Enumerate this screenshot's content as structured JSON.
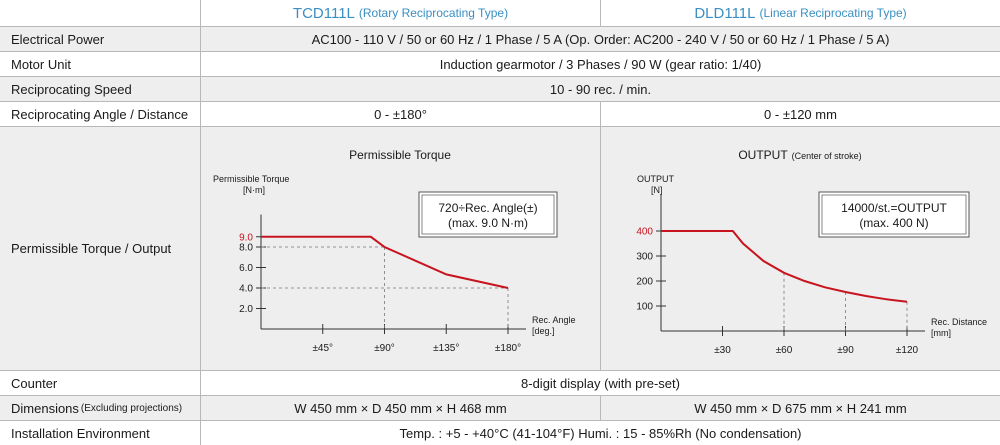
{
  "header": {
    "model_left": "TCD111L",
    "type_left": "(Rotary Reciprocating Type)",
    "model_right": "DLD111L",
    "type_right": "(Linear Reciprocating Type)"
  },
  "rows": {
    "power": {
      "label": "Electrical Power",
      "value": "AC100 - 110 V / 50 or 60 Hz / 1 Phase / 5 A   (Op. Order: AC200 - 240 V / 50 or 60 Hz / 1 Phase / 5 A)"
    },
    "motor": {
      "label": "Motor Unit",
      "value": "Induction gearmotor / 3 Phases / 90 W (gear ratio: 1/40)"
    },
    "speed": {
      "label": "Reciprocating Speed",
      "value": "10 - 90 rec. / min."
    },
    "angle": {
      "label": "Reciprocating Angle / Distance",
      "left": "0 - ±180°",
      "right": "0 - ±120 mm"
    },
    "torque": {
      "label": "Permissible Torque / Output"
    },
    "counter": {
      "label": "Counter",
      "value": "8-digit display (with pre-set)"
    },
    "dimensions": {
      "label": "Dimensions",
      "label_note": "(Excluding projections)",
      "left": "W 450 mm × D 450 mm × H 468 mm",
      "right": "W 450 mm × D 675 mm × H 241 mm"
    },
    "environment": {
      "label": "Installation Environment",
      "value": "Temp. : +5 - +40°C (41-104°F)   Humi. : 15 - 85%Rh (No condensation)"
    }
  },
  "colors": {
    "header_text": "#3a8fc4",
    "curve": "#c8141e",
    "row_shade": "#eeeeee"
  },
  "chart_data": [
    {
      "type": "line",
      "title": "Permissible Torque",
      "ylabel_line1": "Permissible Torque",
      "ylabel_line2": "[N·m]",
      "xlabel_line1": "Rec. Angle",
      "xlabel_line2": "[deg.]",
      "formula_line1": "720÷Rec. Angle(±)",
      "formula_line2": "(max. 9.0 N·m)",
      "x": [
        0,
        45,
        80,
        90,
        135,
        180
      ],
      "y": [
        9.0,
        9.0,
        9.0,
        8.0,
        5.33,
        4.0
      ],
      "x_ticks": [
        45,
        90,
        135,
        180
      ],
      "x_tick_labels": [
        "±45°",
        "±90°",
        "±135°",
        "±180°"
      ],
      "y_ticks": [
        2.0,
        4.0,
        6.0,
        8.0,
        9.0
      ],
      "y_tick_labels": [
        "2.0",
        "4.0",
        "6.0",
        "8.0",
        "9.0"
      ],
      "highlight_tick": "9.0",
      "xlim": [
        0,
        180
      ],
      "ylim": [
        0,
        10
      ],
      "guides": [
        {
          "x": 90,
          "y": 8.0
        },
        {
          "x": 180,
          "y": 4.0
        }
      ]
    },
    {
      "type": "line",
      "title": "OUTPUT",
      "subtitle": "(Center of stroke)",
      "ylabel_line1": "OUTPUT",
      "ylabel_line2": "[N]",
      "xlabel_line1": "Rec. Distance",
      "xlabel_line2": "[mm]",
      "formula_line1": "14000/st.=OUTPUT",
      "formula_line2": "(max. 400 N)",
      "x": [
        0,
        35,
        40,
        50,
        60,
        70,
        80,
        90,
        100,
        110,
        120
      ],
      "y": [
        400,
        400,
        350,
        280,
        233,
        200,
        175,
        156,
        140,
        127,
        117
      ],
      "x_ticks": [
        30,
        60,
        90,
        120
      ],
      "x_tick_labels": [
        "±30",
        "±60",
        "±90",
        "±120"
      ],
      "y_ticks": [
        100,
        200,
        300,
        400
      ],
      "y_tick_labels": [
        "100",
        "200",
        "300",
        "400"
      ],
      "highlight_tick": "400",
      "xlim": [
        0,
        120
      ],
      "ylim": [
        0,
        500
      ],
      "guides": [
        {
          "x": 60,
          "y": 233
        },
        {
          "x": 90,
          "y": 156
        },
        {
          "x": 120,
          "y": 117
        }
      ]
    }
  ]
}
